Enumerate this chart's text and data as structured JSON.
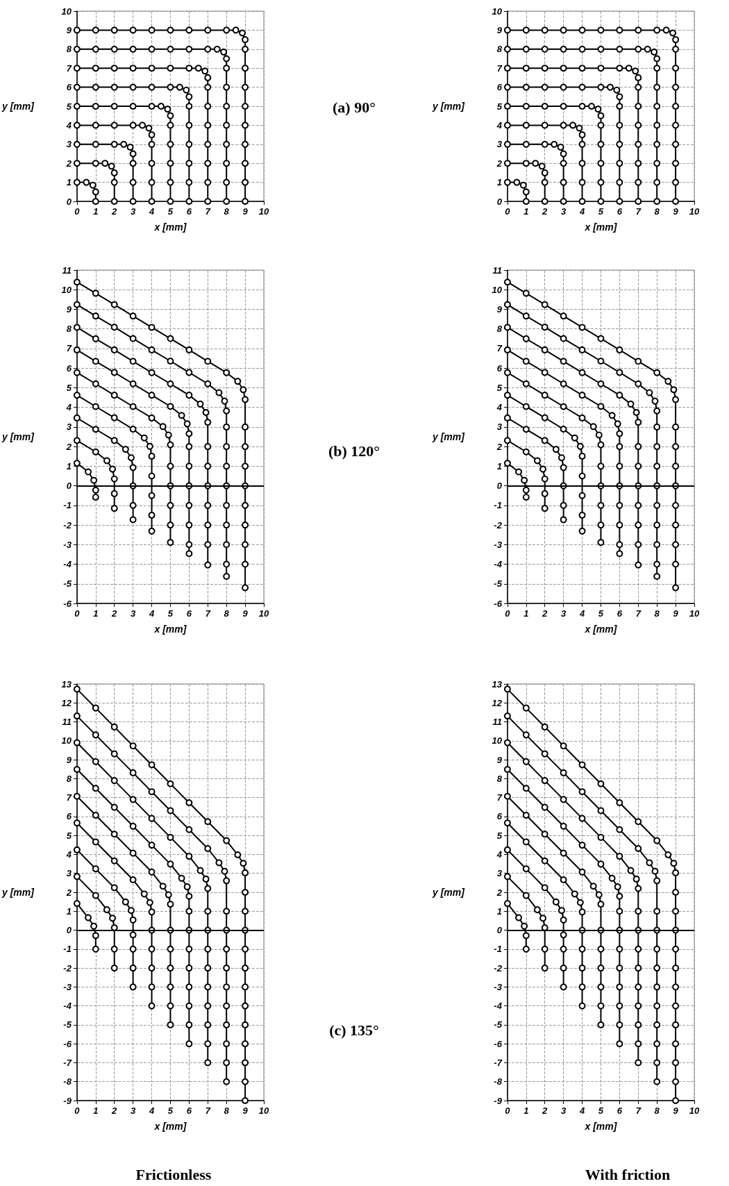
{
  "chart_data": [
    {
      "type": "line",
      "xlabel": "x [mm]",
      "ylabel": "y [mm]",
      "xlim": [
        0,
        10
      ],
      "xticks": [
        0,
        1,
        2,
        3,
        4,
        5,
        6,
        7,
        8,
        9,
        10
      ],
      "ylim": [
        0,
        10
      ],
      "yticks": [
        0,
        1,
        2,
        3,
        4,
        5,
        6,
        7,
        8,
        9,
        10
      ],
      "grid": true,
      "marker": "circle",
      "color": "#000000",
      "annotations": [
        "(a) 90°"
      ],
      "series": [
        {
          "x": [
            0,
            0.5,
            0.85,
            1,
            1
          ],
          "values": [
            1,
            1,
            0.85,
            0.5,
            0
          ]
        },
        {
          "x": [
            0,
            1,
            1.5,
            1.85,
            2,
            2,
            2
          ],
          "values": [
            2,
            2,
            2,
            1.85,
            1.5,
            1,
            0
          ]
        },
        {
          "x": [
            0,
            1,
            2,
            2.5,
            2.85,
            3,
            3,
            3,
            3
          ],
          "values": [
            3,
            3,
            3,
            3,
            2.85,
            2.5,
            2,
            1,
            0
          ]
        },
        {
          "x": [
            0,
            1,
            2,
            3,
            3.5,
            3.85,
            4,
            4,
            4,
            4,
            4
          ],
          "values": [
            4,
            4,
            4,
            4,
            4,
            3.85,
            3.5,
            3,
            2,
            1,
            0
          ]
        },
        {
          "x": [
            0,
            1,
            2,
            3,
            4,
            4.5,
            4.85,
            5,
            5,
            5,
            5,
            5,
            5
          ],
          "values": [
            5,
            5,
            5,
            5,
            5,
            5,
            4.85,
            4.5,
            4,
            3,
            2,
            1,
            0
          ]
        },
        {
          "x": [
            0,
            1,
            2,
            3,
            4,
            5,
            5.5,
            5.85,
            6,
            6,
            6,
            6,
            6,
            6,
            6
          ],
          "values": [
            6,
            6,
            6,
            6,
            6,
            6,
            6,
            5.85,
            5.5,
            5,
            4,
            3,
            2,
            1,
            0
          ]
        },
        {
          "x": [
            0,
            1,
            2,
            3,
            4,
            5,
            6,
            6.5,
            6.85,
            7,
            7,
            7,
            7,
            7,
            7,
            7,
            7
          ],
          "values": [
            7,
            7,
            7,
            7,
            7,
            7,
            7,
            7,
            6.85,
            6.5,
            6,
            5,
            4,
            3,
            2,
            1,
            0
          ]
        },
        {
          "x": [
            0,
            1,
            2,
            3,
            4,
            5,
            6,
            7,
            7.5,
            7.85,
            8,
            8,
            8,
            8,
            8,
            8,
            8,
            8,
            8
          ],
          "values": [
            8,
            8,
            8,
            8,
            8,
            8,
            8,
            8,
            8,
            7.85,
            7.5,
            7,
            6,
            5,
            4,
            3,
            2,
            1,
            0
          ]
        },
        {
          "x": [
            0,
            1,
            2,
            3,
            4,
            5,
            6,
            7,
            8,
            8.5,
            8.85,
            9,
            9,
            9,
            9,
            9,
            9,
            9,
            9,
            9,
            9
          ],
          "values": [
            9,
            9,
            9,
            9,
            9,
            9,
            9,
            9,
            9,
            9,
            8.85,
            8.5,
            8,
            7,
            6,
            5,
            4,
            3,
            2,
            1,
            0
          ]
        }
      ]
    },
    {
      "type": "line",
      "xlabel": "x [mm]",
      "ylabel": "y [mm]",
      "xlim": [
        0,
        10
      ],
      "xticks": [
        0,
        1,
        2,
        3,
        4,
        5,
        6,
        7,
        8,
        9,
        10
      ],
      "ylim": [
        0,
        10
      ],
      "yticks": [
        0,
        1,
        2,
        3,
        4,
        5,
        6,
        7,
        8,
        9,
        10
      ],
      "grid": true,
      "marker": "circle",
      "color": "#000000",
      "series": [
        {
          "x": [
            0,
            0.5,
            0.85,
            1,
            1
          ],
          "values": [
            1,
            1,
            0.85,
            0.5,
            0
          ]
        },
        {
          "x": [
            0,
            1,
            1.5,
            1.85,
            2,
            2,
            2
          ],
          "values": [
            2,
            2,
            2,
            1.85,
            1.5,
            1,
            0
          ]
        },
        {
          "x": [
            0,
            1,
            2,
            2.5,
            2.85,
            3,
            3,
            3,
            3
          ],
          "values": [
            3,
            3,
            3,
            3,
            2.85,
            2.5,
            2,
            1,
            0
          ]
        },
        {
          "x": [
            0,
            1,
            2,
            3,
            3.5,
            3.85,
            4,
            4,
            4,
            4,
            4
          ],
          "values": [
            4,
            4,
            4,
            4,
            4,
            3.85,
            3.5,
            3,
            2,
            1,
            0
          ]
        },
        {
          "x": [
            0,
            1,
            2,
            3,
            4,
            4.5,
            4.85,
            5,
            5,
            5,
            5,
            5,
            5
          ],
          "values": [
            5,
            5,
            5,
            5,
            5,
            5,
            4.85,
            4.5,
            4,
            3,
            2,
            1,
            0
          ]
        },
        {
          "x": [
            0,
            1,
            2,
            3,
            4,
            5,
            5.5,
            5.85,
            6,
            6,
            6,
            6,
            6,
            6,
            6
          ],
          "values": [
            6,
            6,
            6,
            6,
            6,
            6,
            6,
            5.85,
            5.5,
            5,
            4,
            3,
            2,
            1,
            0
          ]
        },
        {
          "x": [
            0,
            1,
            2,
            3,
            4,
            5,
            6,
            6.5,
            6.85,
            7,
            7,
            7,
            7,
            7,
            7,
            7,
            7
          ],
          "values": [
            7,
            7,
            7,
            7,
            7,
            7,
            7,
            7,
            6.85,
            6.5,
            6,
            5,
            4,
            3,
            2,
            1,
            0
          ]
        },
        {
          "x": [
            0,
            1,
            2,
            3,
            4,
            5,
            6,
            7,
            7.5,
            7.85,
            8,
            8,
            8,
            8,
            8,
            8,
            8,
            8,
            8
          ],
          "values": [
            8,
            8,
            8,
            8,
            8,
            8,
            8,
            8,
            8,
            7.85,
            7.5,
            7,
            6,
            5,
            4,
            3,
            2,
            1,
            0
          ]
        },
        {
          "x": [
            0,
            1,
            2,
            3,
            4,
            5,
            6,
            7,
            8,
            8.5,
            8.85,
            9,
            9,
            9,
            9,
            9,
            9,
            9,
            9,
            9,
            9
          ],
          "values": [
            9,
            9,
            9,
            9,
            9,
            9,
            9,
            9,
            9,
            9,
            8.85,
            8.5,
            8,
            7,
            6,
            5,
            4,
            3,
            2,
            1,
            0
          ]
        }
      ]
    },
    {
      "type": "line",
      "xlabel": "x [mm]",
      "ylabel": "y [mm]",
      "xlim": [
        0,
        10
      ],
      "xticks": [
        0,
        1,
        2,
        3,
        4,
        5,
        6,
        7,
        8,
        9,
        10
      ],
      "ylim": [
        -6,
        11
      ],
      "yticks": [
        -6,
        -5,
        -4,
        -3,
        -2,
        -1,
        0,
        1,
        2,
        3,
        4,
        5,
        6,
        7,
        8,
        9,
        10,
        11
      ],
      "grid": true,
      "marker": "circle",
      "color": "#000000",
      "annotations": [
        "(b) 120°"
      ],
      "ref_lines": [
        {
          "axis": "y",
          "value": 0
        }
      ],
      "series": [
        {
          "x": [
            0,
            0.6,
            0.9,
            1,
            1
          ],
          "values": [
            1.15,
            0.71,
            0.28,
            -0.22,
            -0.58
          ]
        },
        {
          "x": [
            0,
            1,
            1.6,
            1.9,
            2,
            2,
            2
          ],
          "values": [
            2.31,
            1.73,
            1.28,
            0.85,
            0.35,
            -0.4,
            -1.15
          ]
        },
        {
          "x": [
            0,
            1,
            2,
            2.6,
            2.9,
            3,
            3,
            3,
            3
          ],
          "values": [
            3.46,
            2.88,
            2.31,
            1.86,
            1.43,
            0.93,
            0,
            -1,
            -1.73
          ]
        },
        {
          "x": [
            0,
            1,
            2,
            3,
            3.6,
            3.9,
            4,
            4,
            4,
            4,
            4
          ],
          "values": [
            4.62,
            4.04,
            3.47,
            2.89,
            2.44,
            2.01,
            1.51,
            0.5,
            -0.5,
            -1.5,
            -2.31
          ]
        },
        {
          "x": [
            0,
            1,
            2,
            3,
            4,
            4.6,
            4.9,
            5,
            5,
            5,
            5,
            5,
            5
          ],
          "values": [
            5.77,
            5.2,
            4.62,
            4.04,
            3.46,
            3.02,
            2.59,
            2.09,
            1,
            0,
            -1,
            -2,
            -2.89
          ]
        },
        {
          "x": [
            0,
            1,
            2,
            3,
            4,
            5,
            5.6,
            5.9,
            6,
            6,
            6,
            6,
            6,
            6,
            6,
            6
          ],
          "values": [
            6.93,
            6.35,
            5.78,
            5.2,
            4.62,
            4.05,
            3.59,
            3.16,
            2.66,
            2,
            1,
            0,
            -1,
            -2,
            -3,
            -3.46
          ]
        },
        {
          "x": [
            0,
            1,
            2,
            3,
            4,
            5,
            6,
            6.6,
            6.9,
            7,
            7,
            7,
            7,
            7,
            7,
            7,
            7
          ],
          "values": [
            8.08,
            7.5,
            6.93,
            6.35,
            5.77,
            5.2,
            4.62,
            4.17,
            3.74,
            3.24,
            2,
            1,
            0,
            -1,
            -2,
            -3,
            -4.04
          ]
        },
        {
          "x": [
            0,
            1,
            2,
            3,
            4,
            5,
            6,
            7,
            7.6,
            7.9,
            8,
            8,
            8,
            8,
            8,
            8,
            8,
            8,
            8,
            8
          ],
          "values": [
            9.24,
            8.66,
            8.09,
            7.51,
            6.93,
            6.36,
            5.78,
            5.2,
            4.75,
            4.32,
            3.82,
            3,
            2,
            1,
            0,
            -1,
            -2,
            -3,
            -4,
            -4.62
          ]
        },
        {
          "x": [
            0,
            1,
            2,
            3,
            4,
            5,
            6,
            7,
            8,
            8.6,
            8.9,
            9,
            9,
            9,
            9,
            9,
            9,
            9,
            9,
            9,
            9
          ],
          "values": [
            10.39,
            9.82,
            9.24,
            8.66,
            8.08,
            7.51,
            6.93,
            6.35,
            5.77,
            5.33,
            4.9,
            4.4,
            3,
            2,
            1,
            0,
            -1,
            -2,
            -3,
            -4,
            -5.2
          ]
        }
      ]
    },
    {
      "type": "line",
      "xlabel": "x [mm]",
      "ylabel": "y [mm]",
      "xlim": [
        0,
        10
      ],
      "xticks": [
        0,
        1,
        2,
        3,
        4,
        5,
        6,
        7,
        8,
        9,
        10
      ],
      "ylim": [
        -6,
        11
      ],
      "yticks": [
        -6,
        -5,
        -4,
        -3,
        -2,
        -1,
        0,
        1,
        2,
        3,
        4,
        5,
        6,
        7,
        8,
        9,
        10,
        11
      ],
      "grid": true,
      "marker": "circle",
      "color": "#000000",
      "ref_lines": [
        {
          "axis": "y",
          "value": 0
        }
      ],
      "series": [
        {
          "x": [
            0,
            0.6,
            0.9,
            1,
            1
          ],
          "values": [
            1.15,
            0.71,
            0.28,
            -0.22,
            -0.58
          ]
        },
        {
          "x": [
            0,
            1,
            1.6,
            1.9,
            2,
            2,
            2
          ],
          "values": [
            2.31,
            1.73,
            1.28,
            0.85,
            0.35,
            -0.4,
            -1.15
          ]
        },
        {
          "x": [
            0,
            1,
            2,
            2.6,
            2.9,
            3,
            3,
            3,
            3
          ],
          "values": [
            3.46,
            2.88,
            2.31,
            1.86,
            1.43,
            0.93,
            0,
            -1,
            -1.73
          ]
        },
        {
          "x": [
            0,
            1,
            2,
            3,
            3.6,
            3.9,
            4,
            4,
            4,
            4,
            4
          ],
          "values": [
            4.62,
            4.04,
            3.47,
            2.89,
            2.44,
            2.01,
            1.51,
            0.5,
            -0.5,
            -1.5,
            -2.31
          ]
        },
        {
          "x": [
            0,
            1,
            2,
            3,
            4,
            4.6,
            4.9,
            5,
            5,
            5,
            5,
            5,
            5
          ],
          "values": [
            5.77,
            5.2,
            4.62,
            4.04,
            3.46,
            3.02,
            2.59,
            2.09,
            1,
            0,
            -1,
            -2,
            -2.89
          ]
        },
        {
          "x": [
            0,
            1,
            2,
            3,
            4,
            5,
            5.6,
            5.9,
            6,
            6,
            6,
            6,
            6,
            6,
            6,
            6
          ],
          "values": [
            6.93,
            6.35,
            5.78,
            5.2,
            4.62,
            4.05,
            3.59,
            3.16,
            2.66,
            2,
            1,
            0,
            -1,
            -2,
            -3,
            -3.46
          ]
        },
        {
          "x": [
            0,
            1,
            2,
            3,
            4,
            5,
            6,
            6.6,
            6.9,
            7,
            7,
            7,
            7,
            7,
            7,
            7,
            7
          ],
          "values": [
            8.08,
            7.5,
            6.93,
            6.35,
            5.77,
            5.2,
            4.62,
            4.17,
            3.74,
            3.24,
            2,
            1,
            0,
            -1,
            -2,
            -3,
            -4.04
          ]
        },
        {
          "x": [
            0,
            1,
            2,
            3,
            4,
            5,
            6,
            7,
            7.6,
            7.9,
            8,
            8,
            8,
            8,
            8,
            8,
            8,
            8,
            8,
            8
          ],
          "values": [
            9.24,
            8.66,
            8.09,
            7.51,
            6.93,
            6.36,
            5.78,
            5.2,
            4.75,
            4.32,
            3.82,
            3,
            2,
            1,
            0,
            -1,
            -2,
            -3,
            -4,
            -4.62
          ]
        },
        {
          "x": [
            0,
            1,
            2,
            3,
            4,
            5,
            6,
            7,
            8,
            8.6,
            8.9,
            9,
            9,
            9,
            9,
            9,
            9,
            9,
            9,
            9,
            9
          ],
          "values": [
            10.39,
            9.82,
            9.24,
            8.66,
            8.08,
            7.51,
            6.93,
            6.35,
            5.77,
            5.33,
            4.9,
            4.4,
            3,
            2,
            1,
            0,
            -1,
            -2,
            -3,
            -4,
            -5.2
          ]
        }
      ]
    },
    {
      "type": "line",
      "xlabel": "x [mm]",
      "ylabel": "y [mm]",
      "xlim": [
        0,
        10
      ],
      "xticks": [
        0,
        1,
        2,
        3,
        4,
        5,
        6,
        7,
        8,
        9,
        10
      ],
      "ylim": [
        -9,
        13
      ],
      "yticks": [
        -9,
        -8,
        -7,
        -6,
        -5,
        -4,
        -3,
        -2,
        -1,
        0,
        1,
        2,
        3,
        4,
        5,
        6,
        7,
        8,
        9,
        10,
        11,
        12,
        13
      ],
      "grid": true,
      "marker": "circle",
      "color": "#000000",
      "annotations": [
        "(c) 135°",
        "Frictionless"
      ],
      "ref_lines": [
        {
          "axis": "y",
          "value": 0
        }
      ],
      "series": [
        {
          "x": [
            0,
            0.6,
            0.9,
            1,
            1
          ],
          "values": [
            1.41,
            0.66,
            0.21,
            -0.29,
            -1
          ]
        },
        {
          "x": [
            0,
            1,
            1.6,
            1.9,
            2,
            2,
            2
          ],
          "values": [
            2.83,
            1.83,
            1.08,
            0.63,
            0.13,
            -1,
            -2
          ]
        },
        {
          "x": [
            0,
            1,
            2,
            2.6,
            2.9,
            3,
            3,
            3,
            3,
            3
          ],
          "values": [
            4.24,
            3.24,
            2.24,
            1.49,
            1.04,
            0.54,
            -0.25,
            -1,
            -2,
            -3
          ]
        },
        {
          "x": [
            0,
            1,
            2,
            3,
            3.6,
            3.9,
            4,
            4,
            4,
            4,
            4,
            4
          ],
          "values": [
            5.66,
            4.66,
            3.66,
            2.66,
            1.91,
            1.46,
            0.96,
            0,
            -1,
            -2,
            -3,
            -4
          ]
        },
        {
          "x": [
            0,
            1,
            2,
            3,
            4,
            4.6,
            4.9,
            5,
            5,
            5,
            5,
            5,
            5,
            5
          ],
          "values": [
            7.07,
            6.07,
            5.07,
            4.07,
            3.07,
            2.32,
            1.87,
            1.37,
            0,
            -1,
            -2,
            -3,
            -4,
            -5
          ]
        },
        {
          "x": [
            0,
            1,
            2,
            3,
            4,
            5,
            5.6,
            5.9,
            6,
            6,
            6,
            6,
            6,
            6,
            6,
            6,
            6
          ],
          "values": [
            8.49,
            7.49,
            6.49,
            5.49,
            4.49,
            3.49,
            2.74,
            2.29,
            1.79,
            1,
            0,
            -1,
            -2,
            -3,
            -4,
            -5,
            -6
          ]
        },
        {
          "x": [
            0,
            1,
            2,
            3,
            4,
            5,
            6,
            6.6,
            6.9,
            7,
            7,
            7,
            7,
            7,
            7,
            7,
            7,
            7,
            7
          ],
          "values": [
            9.9,
            8.9,
            7.9,
            6.9,
            5.9,
            4.9,
            3.9,
            3.15,
            2.7,
            2.2,
            1,
            0,
            -1,
            -2,
            -3,
            -4,
            -5,
            -6,
            -7
          ]
        },
        {
          "x": [
            0,
            1,
            2,
            3,
            4,
            5,
            6,
            7,
            7.6,
            7.9,
            8,
            8,
            8,
            8,
            8,
            8,
            8,
            8,
            8,
            8,
            8
          ],
          "values": [
            11.31,
            10.31,
            9.31,
            8.31,
            7.31,
            6.31,
            5.31,
            4.31,
            3.56,
            3.11,
            2.61,
            1,
            0,
            -1,
            -2,
            -3,
            -4,
            -5,
            -6,
            -7,
            -8
          ]
        },
        {
          "x": [
            0,
            1,
            2,
            3,
            4,
            5,
            6,
            7,
            8,
            8.6,
            8.9,
            9,
            9,
            9,
            9,
            9,
            9,
            9,
            9,
            9,
            9,
            9,
            9,
            9
          ],
          "values": [
            12.73,
            11.73,
            10.73,
            9.73,
            8.73,
            7.73,
            6.73,
            5.73,
            4.73,
            3.98,
            3.53,
            3.03,
            2,
            1,
            0,
            -1,
            -2,
            -3,
            -4,
            -5,
            -6,
            -7,
            -8,
            -9
          ]
        }
      ]
    },
    {
      "type": "line",
      "xlabel": "x [mm]",
      "ylabel": "y [mm]",
      "xlim": [
        0,
        10
      ],
      "xticks": [
        0,
        1,
        2,
        3,
        4,
        5,
        6,
        7,
        8,
        9,
        10
      ],
      "ylim": [
        -9,
        13
      ],
      "yticks": [
        -9,
        -8,
        -7,
        -6,
        -5,
        -4,
        -3,
        -2,
        -1,
        0,
        1,
        2,
        3,
        4,
        5,
        6,
        7,
        8,
        9,
        10,
        11,
        12,
        13
      ],
      "grid": true,
      "marker": "circle",
      "color": "#000000",
      "annotations": [
        "With friction"
      ],
      "ref_lines": [
        {
          "axis": "y",
          "value": 0
        }
      ],
      "series": [
        {
          "x": [
            0,
            0.6,
            0.9,
            1,
            1
          ],
          "values": [
            1.41,
            0.66,
            0.21,
            -0.29,
            -1
          ]
        },
        {
          "x": [
            0,
            1,
            1.6,
            1.9,
            2,
            2,
            2
          ],
          "values": [
            2.83,
            1.83,
            1.08,
            0.63,
            0.13,
            -1,
            -2
          ]
        },
        {
          "x": [
            0,
            1,
            2,
            2.6,
            2.9,
            3,
            3,
            3,
            3,
            3
          ],
          "values": [
            4.24,
            3.24,
            2.24,
            1.49,
            1.04,
            0.54,
            -0.25,
            -1,
            -2,
            -3
          ]
        },
        {
          "x": [
            0,
            1,
            2,
            3,
            3.6,
            3.9,
            4,
            4,
            4,
            4,
            4,
            4
          ],
          "values": [
            5.66,
            4.66,
            3.66,
            2.66,
            1.91,
            1.46,
            0.96,
            0,
            -1,
            -2,
            -3,
            -4
          ]
        },
        {
          "x": [
            0,
            1,
            2,
            3,
            4,
            4.6,
            4.9,
            5,
            5,
            5,
            5,
            5,
            5,
            5
          ],
          "values": [
            7.07,
            6.07,
            5.07,
            4.07,
            3.07,
            2.32,
            1.87,
            1.37,
            0,
            -1,
            -2,
            -3,
            -4,
            -5
          ]
        },
        {
          "x": [
            0,
            1,
            2,
            3,
            4,
            5,
            5.6,
            5.9,
            6,
            6,
            6,
            6,
            6,
            6,
            6,
            6,
            6
          ],
          "values": [
            8.49,
            7.49,
            6.49,
            5.49,
            4.49,
            3.49,
            2.74,
            2.29,
            1.79,
            1,
            0,
            -1,
            -2,
            -3,
            -4,
            -5,
            -6
          ]
        },
        {
          "x": [
            0,
            1,
            2,
            3,
            4,
            5,
            6,
            6.6,
            6.9,
            7,
            7,
            7,
            7,
            7,
            7,
            7,
            7,
            7,
            7
          ],
          "values": [
            9.9,
            8.9,
            7.9,
            6.9,
            5.9,
            4.9,
            3.9,
            3.15,
            2.7,
            2.2,
            1,
            0,
            -1,
            -2,
            -3,
            -4,
            -5,
            -6,
            -7
          ]
        },
        {
          "x": [
            0,
            1,
            2,
            3,
            4,
            5,
            6,
            7,
            7.6,
            7.9,
            8,
            8,
            8,
            8,
            8,
            8,
            8,
            8,
            8,
            8,
            8
          ],
          "values": [
            11.31,
            10.31,
            9.31,
            8.31,
            7.31,
            6.31,
            5.31,
            4.31,
            3.56,
            3.11,
            2.61,
            1,
            0,
            -1,
            -2,
            -3,
            -4,
            -5,
            -6,
            -7,
            -8
          ]
        },
        {
          "x": [
            0,
            1,
            2,
            3,
            4,
            5,
            6,
            7,
            8,
            8.6,
            8.9,
            9,
            9,
            9,
            9,
            9,
            9,
            9,
            9,
            9,
            9,
            9,
            9,
            9
          ],
          "values": [
            12.73,
            11.73,
            10.73,
            9.73,
            8.73,
            7.73,
            6.73,
            5.73,
            4.73,
            3.98,
            3.53,
            3.03,
            2,
            1,
            0,
            -1,
            -2,
            -3,
            -4,
            -5,
            -6,
            -7,
            -8,
            -9
          ]
        }
      ]
    }
  ]
}
